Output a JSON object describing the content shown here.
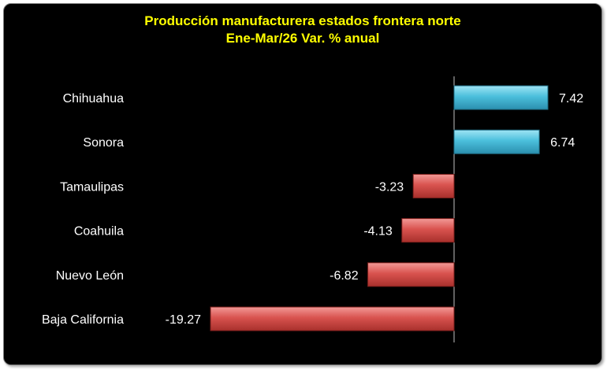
{
  "chart_data": {
    "type": "bar",
    "orientation": "horizontal",
    "title": "Producción manufacturera estados frontera norte",
    "subtitle": "Ene-Mar/26 Var. % anual",
    "categories": [
      "Chihuahua",
      "Sonora",
      "Tamaulipas",
      "Coahuila",
      "Nuevo León",
      "Baja California"
    ],
    "values": [
      7.42,
      6.74,
      -3.23,
      -4.13,
      -6.82,
      -19.27
    ],
    "value_labels": [
      "7.42",
      "6.74",
      "-3.23",
      "-4.13",
      "-6.82",
      "-19.27"
    ],
    "xlim": [
      -19.27,
      7.42
    ],
    "grid": false,
    "legend": "none",
    "colors": {
      "background": "#000000",
      "title": "#ffff00",
      "positive": "#4bbfdc",
      "negative": "#d9534f",
      "text": "#ffffff"
    }
  }
}
